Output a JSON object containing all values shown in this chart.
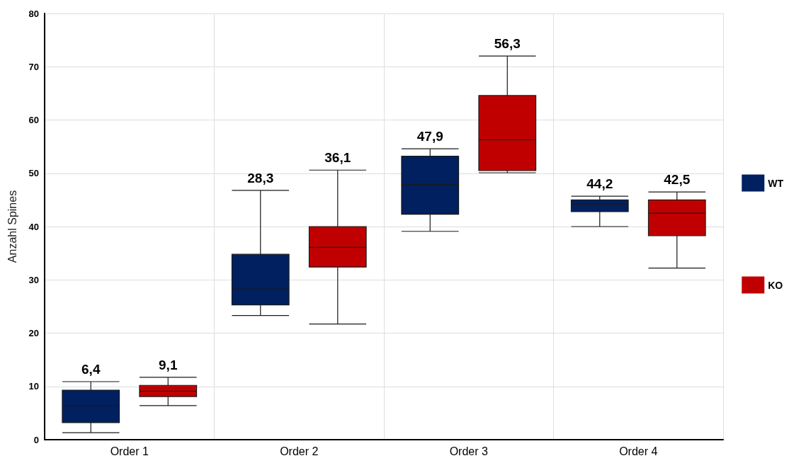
{
  "chart_data": {
    "type": "box",
    "ylabel": "Anzahl Spines",
    "categories": [
      "Order 1",
      "Order 2",
      "Order 3",
      "Order 4"
    ],
    "ylim": [
      0,
      80
    ],
    "yticks": [
      0,
      10,
      20,
      30,
      40,
      50,
      60,
      70,
      80
    ],
    "grid": true,
    "legend": "right",
    "series": [
      {
        "name": "WT",
        "color": "#002060",
        "value_labels": [
          "6,4",
          "28,3",
          "47,9",
          "44,2"
        ],
        "boxes": [
          {
            "low": 1.3,
            "q1": 3.2,
            "median": 6.4,
            "q3": 9.3,
            "high": 10.9
          },
          {
            "low": 23.3,
            "q1": 25.3,
            "median": 28.3,
            "q3": 34.8,
            "high": 46.8
          },
          {
            "low": 39.1,
            "q1": 42.3,
            "median": 47.9,
            "q3": 53.2,
            "high": 54.6
          },
          {
            "low": 40.0,
            "q1": 42.8,
            "median": 44.2,
            "q3": 45.0,
            "high": 45.7
          }
        ]
      },
      {
        "name": "KO",
        "color": "#c00000",
        "value_labels": [
          "9,1",
          "36,1",
          "56,3",
          "42,5"
        ],
        "boxes": [
          {
            "low": 6.4,
            "q1": 8.1,
            "median": 9.1,
            "q3": 10.2,
            "high": 11.7
          },
          {
            "low": 21.7,
            "q1": 32.4,
            "median": 36.1,
            "q3": 40.0,
            "high": 50.6
          },
          {
            "low": 50.1,
            "q1": 50.5,
            "median": 56.3,
            "q3": 64.6,
            "high": 72.0
          },
          {
            "low": 32.2,
            "q1": 38.3,
            "median": 42.5,
            "q3": 45.0,
            "high": 46.5
          }
        ]
      }
    ]
  }
}
